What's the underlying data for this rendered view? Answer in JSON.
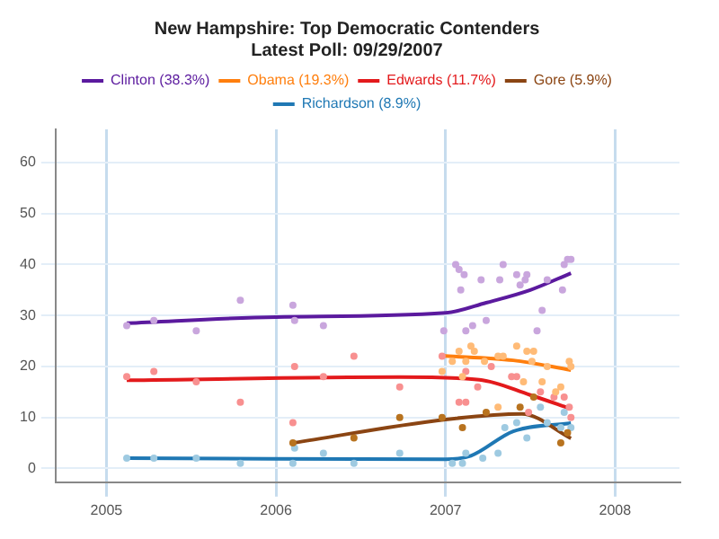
{
  "chart_data": {
    "type": "line",
    "title": "New Hampshire: Top Democratic Contenders",
    "subtitle": "Latest Poll: 09/29/2007",
    "xlim": [
      2004.7,
      2008.38
    ],
    "xticks": [
      2005,
      2006,
      2007,
      2008
    ],
    "ylim": [
      -2.7,
      66.5
    ],
    "yticks": [
      0,
      10,
      20,
      30,
      40,
      50,
      60
    ],
    "grid": true,
    "legend": "top",
    "series": [
      {
        "type": "scatter",
        "color": "#c9a6dd",
        "x": [
          2005.12,
          2005.28,
          2005.53,
          2005.79,
          2006.1,
          2006.11,
          2006.28,
          2007.06,
          2007.08,
          2007.11,
          2007.09,
          2007.21,
          2007.34,
          2007.32,
          2007.42,
          2007.48,
          2007.44,
          2007.47,
          2006.99,
          2007.12,
          2007.16,
          2007.24,
          2007.54,
          2007.57,
          2007.6,
          2007.69,
          2007.7,
          2007.72,
          2007.74
        ],
        "values": [
          28,
          29,
          27,
          33,
          32,
          29,
          28,
          40,
          39,
          38,
          35,
          37,
          40,
          37,
          38,
          38,
          36,
          37,
          27,
          27,
          28,
          29,
          27,
          31,
          37,
          35,
          40,
          41,
          41
        ]
      },
      {
        "type": "scatter",
        "color": "#ffbb77",
        "x": [
          2006.98,
          2007.04,
          2007.08,
          2007.12,
          2007.15,
          2007.17,
          2007.23,
          2007.31,
          2007.34,
          2007.42,
          2007.48,
          2007.52,
          2007.51,
          2007.57,
          2007.46,
          2007.31,
          2007.6,
          2007.65,
          2007.68,
          2007.73,
          2007.74,
          2007.1
        ],
        "values": [
          19,
          21,
          23,
          21,
          24,
          23,
          21,
          22,
          22,
          24,
          23,
          23,
          21,
          17,
          17,
          12,
          20,
          15,
          16,
          21,
          20,
          18
        ]
      },
      {
        "type": "scatter",
        "color": "#f89090",
        "x": [
          2005.12,
          2005.28,
          2005.53,
          2005.79,
          2006.1,
          2006.11,
          2006.28,
          2006.46,
          2006.73,
          2006.98,
          2007.08,
          2007.12,
          2007.12,
          2007.19,
          2007.27,
          2007.39,
          2007.42,
          2007.49,
          2007.56,
          2007.64,
          2007.7,
          2007.73,
          2007.74
        ],
        "values": [
          18,
          19,
          17,
          13,
          9,
          20,
          18,
          22,
          16,
          22,
          13,
          13,
          19,
          16,
          20,
          18,
          18,
          11,
          15,
          14,
          14,
          12,
          10
        ]
      },
      {
        "type": "scatter",
        "color": "#b8731f",
        "x": [
          2006.1,
          2006.46,
          2006.73,
          2006.98,
          2007.1,
          2007.24,
          2007.44,
          2007.52,
          2007.68,
          2007.72
        ],
        "values": [
          5,
          6,
          10,
          10,
          8,
          11,
          12,
          14,
          5,
          7
        ]
      },
      {
        "type": "scatter",
        "color": "#9ecae1",
        "x": [
          2005.12,
          2005.28,
          2005.53,
          2005.79,
          2006.1,
          2006.11,
          2006.28,
          2006.46,
          2006.73,
          2007.04,
          2007.1,
          2007.12,
          2007.22,
          2007.31,
          2007.35,
          2007.42,
          2007.48,
          2007.56,
          2007.6,
          2007.68,
          2007.7,
          2007.74
        ],
        "values": [
          2,
          2,
          2,
          1,
          1,
          4,
          3,
          1,
          3,
          1,
          1,
          3,
          2,
          3,
          8,
          9,
          6,
          12,
          9,
          8,
          11,
          8
        ]
      },
      {
        "name": "Clinton (38.3%)",
        "color": "#5b1a9e",
        "x": [
          2005.12,
          2006,
          2007,
          2007.24,
          2007.5,
          2007.74
        ],
        "values": [
          28.5,
          29.7,
          30.5,
          32.5,
          35,
          38.3
        ]
      },
      {
        "name": "Obama (19.3%)",
        "color": "#ff7f0e",
        "x": [
          2006.98,
          2007.4,
          2007.74
        ],
        "values": [
          22.1,
          21.2,
          19.3
        ]
      },
      {
        "name": "Edwards (11.7%)",
        "color": "#e31a1c",
        "x": [
          2005.12,
          2006.73,
          2007.2,
          2007.5,
          2007.74
        ],
        "values": [
          17.3,
          17.9,
          17.4,
          14.4,
          11.7
        ]
      },
      {
        "name": "Gore (5.9%)",
        "color": "#8b4513",
        "x": [
          2006.1,
          2007,
          2007.45,
          2007.74
        ],
        "values": [
          5,
          9.6,
          10.7,
          5.9
        ]
      },
      {
        "name": "Richardson (8.9%)",
        "color": "#1f78b4",
        "x": [
          2005.12,
          2007,
          2007.15,
          2007.4,
          2007.74
        ],
        "values": [
          2,
          1.8,
          2.5,
          7.3,
          8.9
        ]
      }
    ]
  }
}
